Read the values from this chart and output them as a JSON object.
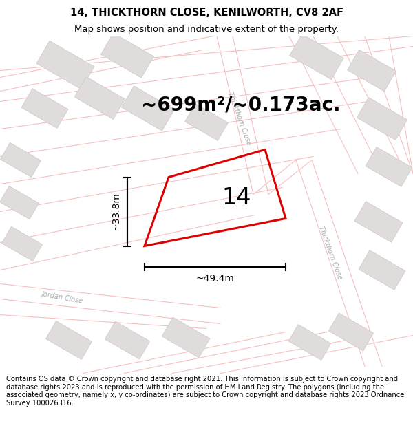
{
  "title": "14, THICKTHORN CLOSE, KENILWORTH, CV8 2AF",
  "subtitle": "Map shows position and indicative extent of the property.",
  "area_text": "~699m²/~0.173ac.",
  "width_label": "~49.4m",
  "height_label": "~33.8m",
  "plot_number": "14",
  "footer_text": "Contains OS data © Crown copyright and database right 2021. This information is subject to Crown copyright and database rights 2023 and is reproduced with the permission of HM Land Registry. The polygons (including the associated geometry, namely x, y co-ordinates) are subject to Crown copyright and database rights 2023 Ordnance Survey 100026316.",
  "bg_color": "#ffffff",
  "map_bg": "#ffffff",
  "road_line_color": "#f5c0c0",
  "building_color": "#e0dcdc",
  "building_edge": "#d0cccc",
  "plot_line_color": "#dd0000",
  "dim_line_color": "#000000",
  "road_fill_color": "#f8e8e8",
  "title_fontsize": 10.5,
  "subtitle_fontsize": 9.5,
  "area_fontsize": 20,
  "label_fontsize": 10,
  "plot_num_fontsize": 24,
  "footer_fontsize": 7.2,
  "street_label_color": "#aaaaaa",
  "street_label_fontsize": 7
}
